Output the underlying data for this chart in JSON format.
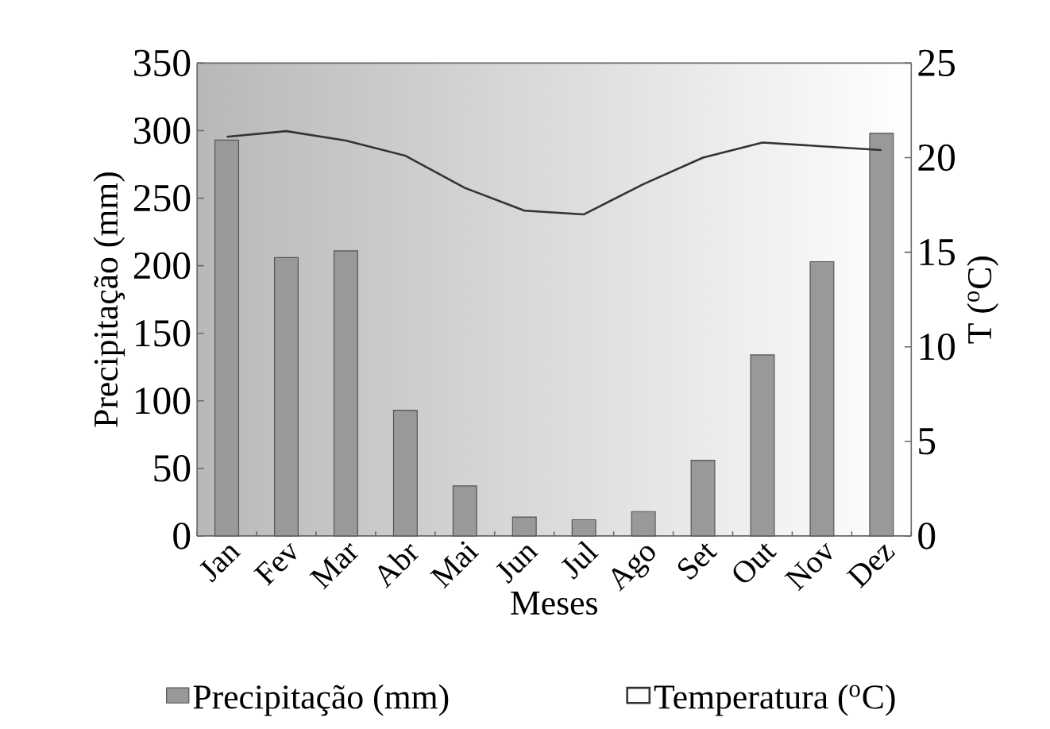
{
  "chart_data": {
    "type": "bar",
    "categories": [
      "Jan",
      "Fev",
      "Mar",
      "Abr",
      "Mai",
      "Jun",
      "Jul",
      "Ago",
      "Set",
      "Out",
      "Nov",
      "Dez"
    ],
    "xlabel": "Meses",
    "ylabel": "Precipitação (mm)",
    "y2label": "T ($^{o}$C)",
    "series": [
      {
        "name": "Precipitação (mm)",
        "color": "#999999",
        "values": [
          293,
          206,
          211,
          93,
          37,
          14,
          12,
          18,
          56,
          134,
          203,
          298
        ]
      },
      {
        "name": "Temperatura ($^{o}$C)",
        "type": "line",
        "axis": "y2",
        "color": "#333333",
        "marker": "none",
        "values": [
          21.1,
          21.4,
          20.9,
          20.1,
          18.4,
          17.2,
          17.0,
          18.6,
          20.0,
          20.8,
          20.6,
          20.4
        ]
      }
    ],
    "ylim": [
      0,
      350
    ],
    "yticks": [
      0,
      50,
      100,
      150,
      200,
      250,
      300,
      350
    ],
    "y2lim": [
      0,
      25
    ],
    "y2ticks": [
      0,
      5,
      10,
      15,
      20,
      25
    ],
    "legend": "bottom"
  }
}
